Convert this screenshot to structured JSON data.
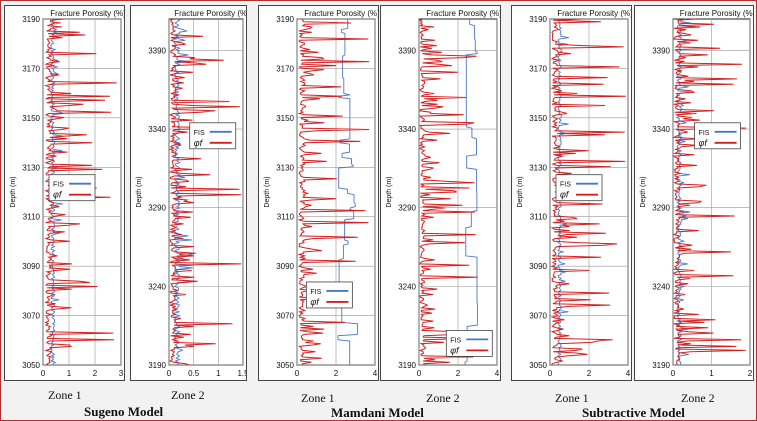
{
  "page": {
    "xlabel_top": "Fracture Porosity (%)",
    "ylabel": "Depth (m)"
  },
  "colors": {
    "fis": "#4a78c8",
    "phi": "#d42020",
    "grid": "#999999"
  },
  "models": [
    {
      "title": "Sugeno Model"
    },
    {
      "title": "Mamdani Model"
    },
    {
      "title": "Subtractive Model"
    }
  ],
  "chart_data": [
    {
      "type": "line",
      "model": "Sugeno Model",
      "zone": "Zone 1",
      "title": "Fracture Porosity (%)",
      "ylabel": "Depth (m)",
      "ylim": [
        3190,
        3050
      ],
      "yticks": [
        3050,
        3070,
        3090,
        3110,
        3130,
        3150,
        3170,
        3190
      ],
      "xlim": [
        0,
        3
      ],
      "xticks": [
        "0",
        "1",
        "2",
        "3"
      ],
      "xtick_values": [
        0,
        1,
        2,
        3
      ],
      "legend": [
        "FIS",
        "φf"
      ],
      "legend_position": "middle-left",
      "series": [
        {
          "name": "FIS",
          "pattern": "fis_tracking",
          "base": 0.3,
          "amp": 0.5
        },
        {
          "name": "φf",
          "pattern": "spiky",
          "base": 0.1,
          "amp": 2.8
        }
      ]
    },
    {
      "type": "line",
      "model": "Sugeno Model",
      "zone": "Zone 2",
      "title": "Fracture Porosity (%)",
      "ylabel": "Depth (m)",
      "ylim": [
        3410,
        3190
      ],
      "yticks": [
        3190,
        3240,
        3290,
        3340,
        3390
      ],
      "xlim": [
        0,
        1.5
      ],
      "xticks": [
        "0",
        "0.5",
        "1",
        "1.5"
      ],
      "xtick_values": [
        0,
        0.5,
        1,
        1.5
      ],
      "legend": [
        "FIS",
        "φf"
      ],
      "legend_position": "upper-center",
      "series": [
        {
          "name": "FIS",
          "pattern": "fis_tracking",
          "base": 0.1,
          "amp": 0.4
        },
        {
          "name": "φf",
          "pattern": "spiky",
          "base": 0.02,
          "amp": 1.45
        }
      ]
    },
    {
      "type": "line",
      "model": "Mamdani Model",
      "zone": "Zone 1",
      "title": "Fracture Porosity (%)",
      "ylabel": "Depth (m)",
      "ylim": [
        3190,
        3050
      ],
      "yticks": [
        3050,
        3070,
        3090,
        3110,
        3130,
        3150,
        3170,
        3190
      ],
      "xlim": [
        0,
        4
      ],
      "xticks": [
        "0",
        "2",
        "4"
      ],
      "xtick_values": [
        0,
        2,
        4
      ],
      "legend": [
        "FIS",
        "φf"
      ],
      "legend_position": "lower-center",
      "series": [
        {
          "name": "FIS",
          "pattern": "fis_step",
          "base": 2.6,
          "amp": 0.5
        },
        {
          "name": "φf",
          "pattern": "spiky",
          "base": 0.1,
          "amp": 3.9
        }
      ]
    },
    {
      "type": "line",
      "model": "Mamdani Model",
      "zone": "Zone 2",
      "title": "Fracture Porosity (%)",
      "ylabel": "Depth (m)",
      "ylim": [
        3410,
        3190
      ],
      "yticks": [
        3190,
        3240,
        3290,
        3340,
        3390
      ],
      "xlim": [
        0,
        4
      ],
      "xticks": [
        "0",
        "2",
        "4"
      ],
      "xtick_values": [
        0,
        2,
        4
      ],
      "legend": [
        "FIS",
        "φf"
      ],
      "legend_position": "bottom-right",
      "series": [
        {
          "name": "FIS",
          "pattern": "fis_step",
          "base": 2.6,
          "amp": 0.4
        },
        {
          "name": "φf",
          "pattern": "spiky",
          "base": 0.05,
          "amp": 3.0
        }
      ]
    },
    {
      "type": "line",
      "model": "Subtractive Model",
      "zone": "Zone 1",
      "title": "Fracture Porosity (%)",
      "ylabel": "Depth (m)",
      "ylim": [
        3190,
        3050
      ],
      "yticks": [
        3050,
        3070,
        3090,
        3110,
        3130,
        3150,
        3170,
        3190
      ],
      "xlim": [
        0,
        4
      ],
      "xticks": [
        "0",
        "2",
        "4"
      ],
      "xtick_values": [
        0,
        2,
        4
      ],
      "legend": [
        "FIS",
        "φf"
      ],
      "legend_position": "middle-left",
      "series": [
        {
          "name": "FIS",
          "pattern": "fis_tracking",
          "base": 0.4,
          "amp": 0.6
        },
        {
          "name": "φf",
          "pattern": "spiky",
          "base": 0.1,
          "amp": 3.8
        }
      ]
    },
    {
      "type": "line",
      "model": "Subtractive Model",
      "zone": "Zone 2",
      "title": "Fracture Porosity (%)",
      "ylabel": "Depth (m)",
      "ylim": [
        3410,
        3190
      ],
      "yticks": [
        3190,
        3240,
        3290,
        3340,
        3390
      ],
      "xlim": [
        0,
        2
      ],
      "xticks": [
        "0",
        "1",
        "2"
      ],
      "xtick_values": [
        0,
        1,
        2
      ],
      "legend": [
        "FIS",
        "φf"
      ],
      "legend_position": "upper-center",
      "series": [
        {
          "name": "FIS",
          "pattern": "fis_tracking",
          "base": 0.1,
          "amp": 0.4
        },
        {
          "name": "φf",
          "pattern": "spiky",
          "base": 0.02,
          "amp": 1.95
        }
      ]
    }
  ]
}
